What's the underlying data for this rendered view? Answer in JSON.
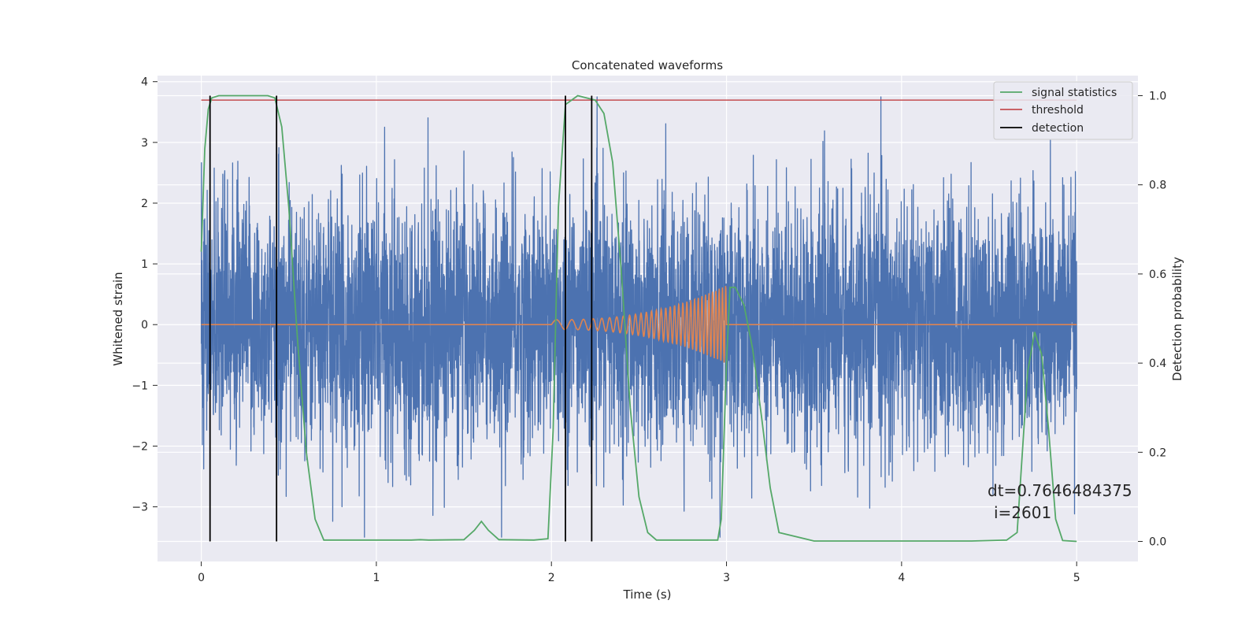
{
  "chart_data": {
    "type": "line",
    "title": "Concatenated waveforms",
    "xlabel": "Time (s)",
    "ylabel_left": "Whitened strain",
    "ylabel_right": "Detection probability",
    "xlim": [
      -0.25,
      5.35
    ],
    "ylim_left": [
      -3.9,
      4.1
    ],
    "ylim_right": [
      -0.045,
      1.045
    ],
    "xticks": [
      0,
      1,
      2,
      3,
      4,
      5
    ],
    "xtick_labels": [
      "0",
      "1",
      "2",
      "3",
      "4",
      "5"
    ],
    "yticks_left": [
      -3,
      -2,
      -1,
      0,
      1,
      2,
      3,
      4
    ],
    "ytick_labels_left": [
      "−3",
      "−2",
      "−1",
      "0",
      "1",
      "2",
      "3",
      "4"
    ],
    "yticks_right": [
      0.0,
      0.2,
      0.4,
      0.6,
      0.8,
      1.0
    ],
    "ytick_labels_right": [
      "0.0",
      "0.2",
      "0.4",
      "0.6",
      "0.8",
      "1.0"
    ],
    "grid": true,
    "legend_position": "top-right",
    "legend": [
      "signal statistics",
      "threshold",
      "detection"
    ],
    "colors": {
      "noise": "#4c72b0",
      "injected": "#dd8452",
      "signal_statistics": "#55a868",
      "threshold": "#c44e52",
      "detection": "#000000",
      "axes_background": "#eaeaf2",
      "grid": "#ffffff"
    },
    "noise_series": {
      "name": "whitened strain (noise)",
      "x_range": [
        0,
        5
      ],
      "typical_amplitude": 1.0,
      "peak_max": 3.75,
      "peak_min": -3.5
    },
    "injected_waveform": {
      "name": "injected chirp",
      "start": 2.0,
      "end": 3.0,
      "start_amplitude": 0.08,
      "end_amplitude": 0.65,
      "start_freq_hz": 8,
      "end_freq_hz": 55
    },
    "signal_statistics": {
      "x": [
        0.0,
        0.02,
        0.04,
        0.06,
        0.1,
        0.2,
        0.38,
        0.42,
        0.46,
        0.5,
        0.55,
        0.6,
        0.65,
        0.7,
        1.2,
        1.25,
        1.3,
        1.5,
        1.56,
        1.6,
        1.64,
        1.7,
        1.9,
        1.98,
        2.01,
        2.04,
        2.08,
        2.15,
        2.25,
        2.3,
        2.35,
        2.4,
        2.45,
        2.5,
        2.55,
        2.6,
        2.95,
        2.97,
        3.0,
        3.02,
        3.05,
        3.1,
        3.15,
        3.2,
        3.25,
        3.3,
        3.5,
        4.4,
        4.6,
        4.66,
        4.72,
        4.76,
        4.8,
        4.84,
        4.88,
        4.92,
        5.0
      ],
      "y": [
        0.65,
        0.88,
        0.97,
        0.995,
        1.0,
        1.0,
        1.0,
        0.995,
        0.93,
        0.75,
        0.45,
        0.2,
        0.05,
        0.003,
        0.003,
        0.004,
        0.003,
        0.004,
        0.025,
        0.045,
        0.025,
        0.004,
        0.003,
        0.006,
        0.25,
        0.75,
        0.98,
        1.0,
        0.99,
        0.96,
        0.85,
        0.6,
        0.3,
        0.1,
        0.02,
        0.003,
        0.003,
        0.05,
        0.4,
        0.57,
        0.57,
        0.53,
        0.43,
        0.28,
        0.12,
        0.02,
        0.001,
        0.001,
        0.003,
        0.02,
        0.38,
        0.47,
        0.42,
        0.25,
        0.05,
        0.002,
        0.0
      ]
    },
    "threshold": {
      "value": 0.99,
      "x_range": [
        0,
        5
      ]
    },
    "detections": [
      0.05,
      0.43,
      2.08,
      2.23
    ],
    "detection_span": [
      0,
      1
    ]
  },
  "annotations": {
    "dt": "dt=0.7646484375",
    "i": "i=2601"
  }
}
